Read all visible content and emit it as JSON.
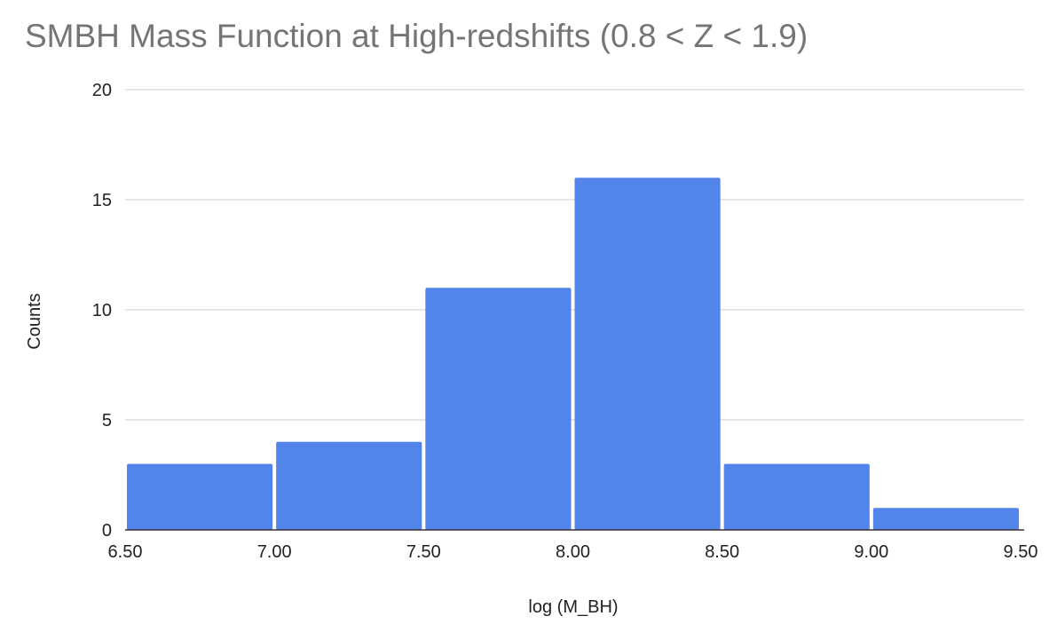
{
  "chart_data": {
    "type": "bar",
    "title": "SMBH Mass Function at High-redshifts (0.8 < Z < 1.9)",
    "xlabel": "log (M_BH)",
    "ylabel": "Counts",
    "bins": [
      {
        "x0": 6.5,
        "x1": 7.0,
        "value": 3
      },
      {
        "x0": 7.0,
        "x1": 7.5,
        "value": 4
      },
      {
        "x0": 7.5,
        "x1": 8.0,
        "value": 11
      },
      {
        "x0": 8.0,
        "x1": 8.5,
        "value": 16
      },
      {
        "x0": 8.5,
        "x1": 9.0,
        "value": 3
      },
      {
        "x0": 9.0,
        "x1": 9.5,
        "value": 1
      }
    ],
    "xlim": [
      6.5,
      9.5
    ],
    "ylim": [
      0,
      20
    ],
    "x_ticks": [
      "6.50",
      "7.00",
      "7.50",
      "8.00",
      "8.50",
      "9.00",
      "9.50"
    ],
    "y_ticks": [
      "0",
      "5",
      "10",
      "15",
      "20"
    ],
    "grid": true,
    "legend": "none",
    "bar_color": "#5284EA",
    "grid_color": "#CCCCCC",
    "title_color": "#757575"
  }
}
